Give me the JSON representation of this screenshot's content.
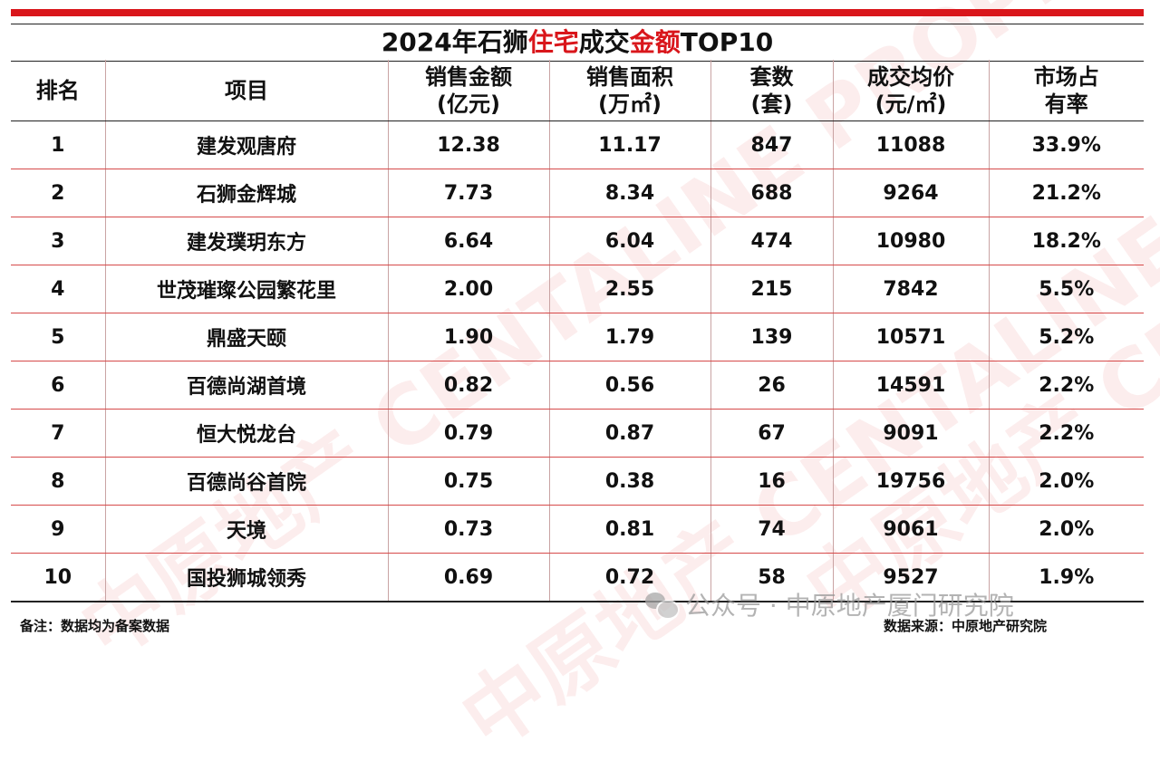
{
  "title": {
    "seg1": "2024年石狮",
    "seg2": "住宅",
    "seg3": "成交",
    "seg4": "金额",
    "seg5": "TOP10"
  },
  "headers": [
    {
      "l1": "排名",
      "l2": ""
    },
    {
      "l1": "项目",
      "l2": ""
    },
    {
      "l1": "销售金额",
      "l2": "(亿元)"
    },
    {
      "l1": "销售面积",
      "l2": "(万㎡)"
    },
    {
      "l1": "套数",
      "l2": "(套)"
    },
    {
      "l1": "成交均价",
      "l2": "(元/㎡)"
    },
    {
      "l1": "市场占",
      "l2": "有率"
    }
  ],
  "rows": [
    [
      "1",
      "建发观唐府",
      "12.38",
      "11.17",
      "847",
      "11088",
      "33.9%"
    ],
    [
      "2",
      "石狮金辉城",
      "7.73",
      "8.34",
      "688",
      "9264",
      "21.2%"
    ],
    [
      "3",
      "建发璞玥东方",
      "6.64",
      "6.04",
      "474",
      "10980",
      "18.2%"
    ],
    [
      "4",
      "世茂璀璨公园繁花里",
      "2.00",
      "2.55",
      "215",
      "7842",
      "5.5%"
    ],
    [
      "5",
      "鼎盛天颐",
      "1.90",
      "1.79",
      "139",
      "10571",
      "5.2%"
    ],
    [
      "6",
      "百德尚湖首境",
      "0.82",
      "0.56",
      "26",
      "14591",
      "2.2%"
    ],
    [
      "7",
      "恒大悦龙台",
      "0.79",
      "0.87",
      "67",
      "9091",
      "2.2%"
    ],
    [
      "8",
      "百德尚谷首院",
      "0.75",
      "0.38",
      "16",
      "19756",
      "2.0%"
    ],
    [
      "9",
      "天境",
      "0.73",
      "0.81",
      "74",
      "9061",
      "2.0%"
    ],
    [
      "10",
      "国投狮城领秀",
      "0.69",
      "0.72",
      "58",
      "9527",
      "1.9%"
    ]
  ],
  "footer": {
    "note": "备注：数据均为备案数据",
    "source": "数据来源：中原地产研究院"
  },
  "account_watermark": "公众号 · 中原地产厦门研究院",
  "bg_watermark_text": "中原地产 CENTALINE PROPERTY",
  "colors": {
    "accent": "#d9161b"
  }
}
